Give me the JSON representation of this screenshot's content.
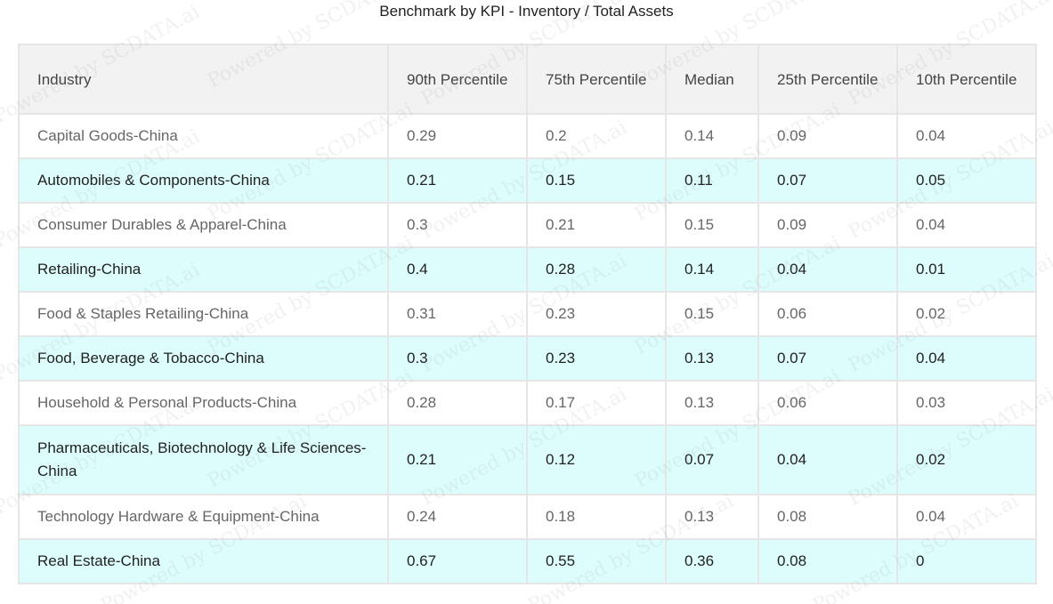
{
  "title": "Benchmark by KPI - Inventory / Total Assets",
  "columns": [
    "Industry",
    "90th Percentile",
    "75th Percentile",
    "Median",
    "25th Percentile",
    "10th Percentile"
  ],
  "rows": [
    {
      "industry": "Capital Goods-China",
      "p90": "0.29",
      "p75": "0.2",
      "median": "0.14",
      "p25": "0.09",
      "p10": "0.04"
    },
    {
      "industry": "Automobiles & Components-China",
      "p90": "0.21",
      "p75": "0.15",
      "median": "0.11",
      "p25": "0.07",
      "p10": "0.05"
    },
    {
      "industry": "Consumer Durables & Apparel-China",
      "p90": "0.3",
      "p75": "0.21",
      "median": "0.15",
      "p25": "0.09",
      "p10": "0.04"
    },
    {
      "industry": "Retailing-China",
      "p90": "0.4",
      "p75": "0.28",
      "median": "0.14",
      "p25": "0.04",
      "p10": "0.01"
    },
    {
      "industry": "Food & Staples Retailing-China",
      "p90": "0.31",
      "p75": "0.23",
      "median": "0.15",
      "p25": "0.06",
      "p10": "0.02"
    },
    {
      "industry": "Food, Beverage & Tobacco-China",
      "p90": "0.3",
      "p75": "0.23",
      "median": "0.13",
      "p25": "0.07",
      "p10": "0.04"
    },
    {
      "industry": "Household & Personal Products-China",
      "p90": "0.28",
      "p75": "0.17",
      "median": "0.13",
      "p25": "0.06",
      "p10": "0.03"
    },
    {
      "industry": "Pharmaceuticals, Biotechnology & Life Sciences-China",
      "p90": "0.21",
      "p75": "0.12",
      "median": "0.07",
      "p25": "0.04",
      "p10": "0.02"
    },
    {
      "industry": "Technology Hardware & Equipment-China",
      "p90": "0.24",
      "p75": "0.18",
      "median": "0.13",
      "p25": "0.08",
      "p10": "0.04"
    },
    {
      "industry": "Real Estate-China",
      "p90": "0.67",
      "p75": "0.55",
      "median": "0.36",
      "p25": "0.08",
      "p10": "0"
    }
  ],
  "watermark": "Powered by SCDATA.ai",
  "colors": {
    "header_bg": "#f2f2f2",
    "row_alt_bg": "#ddfdfd",
    "border": "#e6e6e6"
  }
}
